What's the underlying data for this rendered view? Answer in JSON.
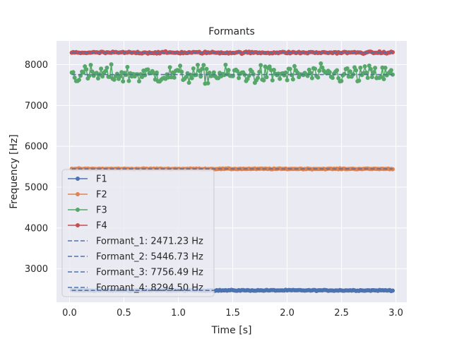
{
  "chart_data": {
    "type": "line",
    "title": "Formants",
    "xlabel": "Time [s]",
    "ylabel": "Frequency [Hz]",
    "xlim": [
      -0.12,
      3.1
    ],
    "ylim": [
      2180,
      8580
    ],
    "xticks": [
      0.0,
      0.5,
      1.0,
      1.5,
      2.0,
      2.5,
      3.0
    ],
    "xtick_labels": [
      "0.0",
      "0.5",
      "1.0",
      "1.5",
      "2.0",
      "2.5",
      "3.0"
    ],
    "yticks": [
      3000,
      4000,
      5000,
      6000,
      7000,
      8000
    ],
    "ytick_labels": [
      "3000",
      "4000",
      "5000",
      "6000",
      "7000",
      "8000"
    ],
    "grid": true,
    "legend_position": "lower-left",
    "background_color": "#eaeaf2",
    "x_start": 0.02,
    "x_end": 2.97,
    "series": [
      {
        "name": "F1",
        "color": "#4c72b0",
        "mean": 2471.23,
        "spread": 6
      },
      {
        "name": "F2",
        "color": "#dd8452",
        "mean": 5446.73,
        "spread": 5
      },
      {
        "name": "F3",
        "color": "#55a868",
        "mean": 7756.49,
        "spread": 110
      },
      {
        "name": "F4",
        "color": "#c44e52",
        "mean": 8294.5,
        "spread": 12
      }
    ],
    "reference_lines": [
      {
        "name": "Formant_1: 2471.23 Hz",
        "value": 2471.23,
        "color": "#4c72b0"
      },
      {
        "name": "Formant_2: 5446.73 Hz",
        "value": 5446.73,
        "color": "#4c72b0"
      },
      {
        "name": "Formant_3: 7756.49 Hz",
        "value": 7756.49,
        "color": "#4c72b0"
      },
      {
        "name": "Formant_4: 8294.50 Hz",
        "value": 8294.5,
        "color": "#4c72b0"
      }
    ]
  }
}
